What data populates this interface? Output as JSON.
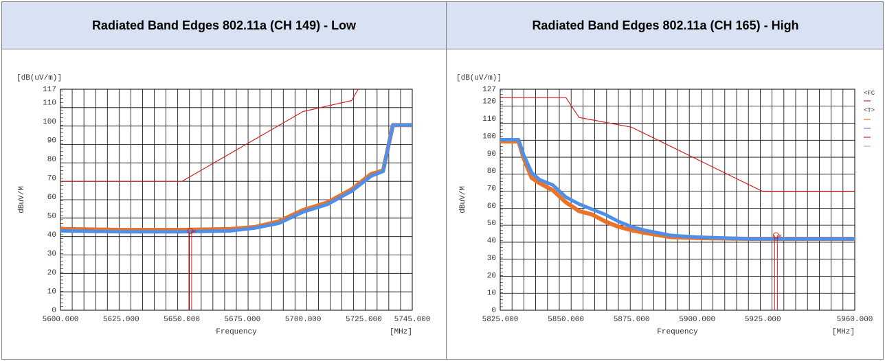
{
  "table": {
    "headers": [
      "Radiated Band Edges 802.11a (CH 149) - Low",
      "Radiated Band Edges 802.11a (CH 165) - High"
    ]
  },
  "chart_data": [
    {
      "type": "line",
      "title": "Radiated Band Edges 802.11a (CH 149) - Low",
      "unit_label": "[dB(uV/m)]",
      "ylabel": "dBuV/M",
      "xlabel": "Frequency",
      "xunit": "[MHz]",
      "xlim": [
        5600,
        5745
      ],
      "ylim": [
        0,
        117
      ],
      "yticks": [
        "117",
        "110",
        "100",
        "90",
        "80",
        "70",
        "60",
        "50",
        "40",
        "30",
        "20",
        "10",
        "0"
      ],
      "xticks": [
        "5600.000",
        "5625.000",
        "5650.000",
        "5675.000",
        "5700.000",
        "5725.000",
        "5745.000"
      ],
      "grid": true,
      "series": [
        {
          "color": "#e8742c",
          "x": [
            5600,
            5625,
            5650,
            5670,
            5680,
            5690,
            5695,
            5700,
            5710,
            5720,
            5728,
            5733,
            5737,
            5745
          ],
          "y": [
            43,
            42.5,
            42.5,
            43,
            44,
            47,
            50,
            53,
            57,
            64,
            72,
            74,
            98,
            98
          ]
        },
        {
          "color": "#4f8fe8",
          "x": [
            5600,
            5625,
            5650,
            5670,
            5680,
            5690,
            5695,
            5700,
            5710,
            5720,
            5728,
            5733,
            5737,
            5745
          ],
          "y": [
            42,
            41.5,
            41.5,
            42,
            43.5,
            46,
            49,
            52,
            56,
            63,
            71,
            73.5,
            98,
            98
          ]
        },
        {
          "color": "#d42020",
          "x": [
            5600,
            5650,
            5700,
            5720,
            5725
          ],
          "y": [
            68.2,
            68.2,
            105.2,
            111,
            122
          ]
        }
      ],
      "markers": [
        {
          "color": "#d42020",
          "x": 5653.5,
          "y": 42
        }
      ]
    },
    {
      "type": "line",
      "title": "Radiated Band Edges 802.11a (CH 165) - High",
      "unit_label": "[dB(uV/m)]",
      "ylabel": "dBuV/M",
      "xlabel": "Frequency",
      "xunit": "[MHz]",
      "xlim": [
        5825,
        5960
      ],
      "ylim": [
        0,
        127
      ],
      "yticks": [
        "127",
        "120",
        "110",
        "100",
        "90",
        "80",
        "70",
        "60",
        "50",
        "40",
        "30",
        "20",
        "10",
        "0"
      ],
      "xticks": [
        "5825.000",
        "5850.000",
        "5875.000",
        "5900.000",
        "5925.000",
        "5960.000"
      ],
      "grid": true,
      "legend_fragments": [
        "<FC",
        "<T>"
      ],
      "series": [
        {
          "color": "#e8742c",
          "x": [
            5825,
            5832,
            5834,
            5837,
            5840,
            5845,
            5850,
            5855,
            5860,
            5865,
            5870,
            5875,
            5880,
            5890,
            5900,
            5920,
            5940,
            5960
          ],
          "y": [
            97,
            97,
            87,
            76,
            73,
            69,
            62,
            57,
            55,
            51,
            48,
            46,
            44.5,
            42,
            41.5,
            41,
            41,
            41
          ]
        },
        {
          "color": "#4f8fe8",
          "x": [
            5825,
            5832,
            5834,
            5837,
            5840,
            5845,
            5850,
            5855,
            5860,
            5865,
            5870,
            5875,
            5880,
            5890,
            5900,
            5920,
            5940,
            5960
          ],
          "y": [
            98,
            98,
            89,
            79,
            75,
            72,
            65,
            61,
            58,
            55,
            51,
            48,
            46,
            43,
            42,
            41,
            41,
            41
          ]
        },
        {
          "color": "#d42020",
          "x": [
            5825,
            5850,
            5855,
            5875,
            5925,
            5960
          ],
          "y": [
            122.2,
            122.2,
            110.8,
            105.2,
            68.2,
            68.2
          ]
        }
      ],
      "markers": [
        {
          "color": "#d42020",
          "x": 5930,
          "y": 43
        }
      ]
    }
  ]
}
